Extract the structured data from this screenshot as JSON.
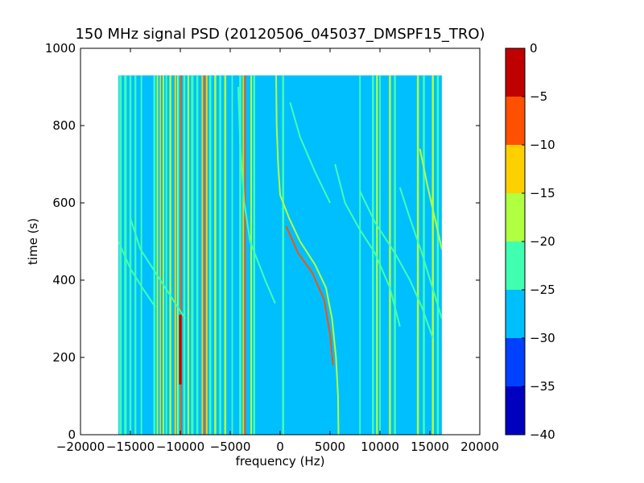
{
  "chart_data": {
    "type": "heatmap",
    "title": "150 MHz signal PSD (20120506_045037_DMSPF15_TRO)",
    "xlabel": "frequency (Hz)",
    "ylabel": "time (s)",
    "xlim": [
      -20000,
      20000
    ],
    "ylim": [
      0,
      1000
    ],
    "xticks": [
      -20000,
      -15000,
      -10000,
      -5000,
      0,
      5000,
      10000,
      15000,
      20000
    ],
    "xtick_labels": [
      "−20000",
      "−15000",
      "−10000",
      "−5000",
      "0",
      "5000",
      "10000",
      "15000",
      "20000"
    ],
    "yticks": [
      0,
      200,
      400,
      600,
      800,
      1000
    ],
    "ytick_labels": [
      "0",
      "200",
      "400",
      "600",
      "800",
      "1000"
    ],
    "data_extent": {
      "x": [
        -16200,
        16200
      ],
      "y": [
        0,
        930
      ]
    },
    "background_level_color": "#00bfff",
    "colorbar": {
      "range": [
        -40,
        0
      ],
      "levels": [
        {
          "from": -40,
          "to": -35,
          "color": "#0000bf"
        },
        {
          "from": -35,
          "to": -30,
          "color": "#0040ff"
        },
        {
          "from": -30,
          "to": -25,
          "color": "#00bfff"
        },
        {
          "from": -25,
          "to": -20,
          "color": "#40ffb0"
        },
        {
          "from": -20,
          "to": -15,
          "color": "#b0ff40"
        },
        {
          "from": -15,
          "to": -10,
          "color": "#ffd000"
        },
        {
          "from": -10,
          "to": -5,
          "color": "#ff5000"
        },
        {
          "from": -5,
          "to": 0,
          "color": "#c00000"
        }
      ],
      "ticks": [
        0,
        -5,
        -10,
        -15,
        -20,
        -25,
        -30,
        -35,
        -40
      ],
      "tick_labels": [
        "0",
        "−5",
        "−10",
        "−15",
        "−20",
        "−25",
        "−30",
        "−35",
        "−40"
      ]
    },
    "constant_lines": [
      {
        "freq": -16000,
        "level": "-25..-20",
        "width_hz": 250
      },
      {
        "freq": -15500,
        "level": "-25..-20",
        "width_hz": 250
      },
      {
        "freq": -15000,
        "level": "-25..-20",
        "width_hz": 200
      },
      {
        "freq": -14500,
        "level": "-25..-20",
        "width_hz": 180
      },
      {
        "freq": -13900,
        "level": "-25..-20",
        "width_hz": 150
      },
      {
        "freq": -12600,
        "level": "-25..-20",
        "width_hz": 200
      },
      {
        "freq": -12300,
        "level": "-20..-15",
        "width_hz": 150
      },
      {
        "freq": -12000,
        "level": "-15..-10",
        "width_hz": 130
      },
      {
        "freq": -11700,
        "level": "-20..-15",
        "width_hz": 150
      },
      {
        "freq": -11400,
        "level": "-25..-20",
        "width_hz": 150
      },
      {
        "freq": -11000,
        "level": "-20..-15",
        "width_hz": 200
      },
      {
        "freq": -10500,
        "level": "-15..-10",
        "width_hz": 150
      },
      {
        "freq": -10250,
        "level": "-20..-15",
        "width_hz": 150
      },
      {
        "freq": -9900,
        "level": "-10..-5",
        "width_hz": 140
      },
      {
        "freq": -9600,
        "level": "-25..-20",
        "width_hz": 200
      },
      {
        "freq": -9200,
        "level": "-20..-15",
        "width_hz": 180
      },
      {
        "freq": -8800,
        "level": "-25..-20",
        "width_hz": 250
      },
      {
        "freq": -8300,
        "level": "-25..-20",
        "width_hz": 200
      },
      {
        "freq": -7800,
        "level": "-15..-10",
        "width_hz": 150
      },
      {
        "freq": -7600,
        "level": "-10..-5",
        "width_hz": 140
      },
      {
        "freq": -7350,
        "level": "-15..-10",
        "width_hz": 150
      },
      {
        "freq": -7000,
        "level": "-25..-20",
        "width_hz": 200
      },
      {
        "freq": -6500,
        "level": "-20..-15",
        "width_hz": 200
      },
      {
        "freq": -6000,
        "level": "-25..-20",
        "width_hz": 200
      },
      {
        "freq": -5500,
        "level": "-20..-15",
        "width_hz": 200
      },
      {
        "freq": -4800,
        "level": "-25..-20",
        "width_hz": 150
      },
      {
        "freq": -4000,
        "level": "-25..-20",
        "width_hz": 200
      },
      {
        "freq": -3700,
        "level": "-15..-10",
        "width_hz": 130
      },
      {
        "freq": -3500,
        "level": "-10..-5",
        "width_hz": 130
      },
      {
        "freq": -2900,
        "level": "-20..-15",
        "width_hz": 160
      },
      {
        "freq": -2600,
        "level": "-25..-20",
        "width_hz": 200
      },
      {
        "freq": 300,
        "level": "-25..-20",
        "width_hz": 200
      },
      {
        "freq": 8000,
        "level": "-25..-20",
        "width_hz": 150
      },
      {
        "freq": 9300,
        "level": "-25..-20",
        "width_hz": 200
      },
      {
        "freq": 9700,
        "level": "-20..-15",
        "width_hz": 180
      },
      {
        "freq": 10000,
        "level": "-25..-20",
        "width_hz": 150
      },
      {
        "freq": 11000,
        "level": "-20..-15",
        "width_hz": 200
      },
      {
        "freq": 11500,
        "level": "-25..-20",
        "width_hz": 200
      },
      {
        "freq": 13800,
        "level": "-20..-15",
        "width_hz": 200
      },
      {
        "freq": 14400,
        "level": "-25..-20",
        "width_hz": 200
      },
      {
        "freq": 15300,
        "level": "-20..-15",
        "width_hz": 200
      },
      {
        "freq": 15800,
        "level": "-25..-20",
        "width_hz": 200
      }
    ],
    "peak_segments": [
      {
        "freq": -10000,
        "t_from": 130,
        "t_to": 310,
        "level": "-5..0",
        "width_hz": 250
      }
    ],
    "doppler_curves": [
      {
        "level": "-20..-15",
        "points": [
          [
            -400,
            930
          ],
          [
            -350,
            800
          ],
          [
            -200,
            700
          ],
          [
            0,
            620
          ],
          [
            900,
            560
          ],
          [
            2000,
            500
          ],
          [
            3500,
            440
          ],
          [
            4600,
            380
          ],
          [
            5200,
            300
          ],
          [
            5600,
            200
          ],
          [
            5800,
            100
          ],
          [
            5850,
            0
          ]
        ]
      },
      {
        "level": "-10..-5",
        "points": [
          [
            600,
            540
          ],
          [
            1800,
            470
          ],
          [
            3200,
            420
          ],
          [
            4400,
            350
          ],
          [
            5000,
            260
          ],
          [
            5300,
            180
          ]
        ]
      },
      {
        "level": "-25..-20",
        "points": [
          [
            -15000,
            560
          ],
          [
            -14000,
            480
          ],
          [
            -12500,
            420
          ],
          [
            -11000,
            360
          ],
          [
            -9500,
            300
          ]
        ]
      },
      {
        "level": "-25..-20",
        "points": [
          [
            -16200,
            500
          ],
          [
            -15000,
            430
          ],
          [
            -13800,
            380
          ],
          [
            -12500,
            330
          ]
        ]
      },
      {
        "level": "-25..-20",
        "points": [
          [
            -4200,
            900
          ],
          [
            -4000,
            750
          ],
          [
            -3600,
            600
          ],
          [
            -3000,
            500
          ],
          [
            -1500,
            400
          ],
          [
            -500,
            340
          ]
        ]
      },
      {
        "level": "-25..-20",
        "points": [
          [
            5500,
            700
          ],
          [
            6500,
            600
          ],
          [
            8000,
            530
          ],
          [
            9500,
            470
          ],
          [
            11000,
            380
          ],
          [
            12000,
            280
          ]
        ]
      },
      {
        "level": "-25..-20",
        "points": [
          [
            1000,
            860
          ],
          [
            2000,
            770
          ],
          [
            3500,
            680
          ],
          [
            5000,
            600
          ]
        ]
      },
      {
        "level": "-25..-20",
        "points": [
          [
            8000,
            630
          ],
          [
            9500,
            550
          ],
          [
            11500,
            470
          ],
          [
            13000,
            400
          ],
          [
            14200,
            330
          ],
          [
            15300,
            250
          ]
        ]
      },
      {
        "level": "-20..-15",
        "points": [
          [
            14000,
            740
          ],
          [
            14800,
            640
          ],
          [
            15500,
            560
          ],
          [
            16200,
            480
          ]
        ]
      },
      {
        "level": "-25..-20",
        "points": [
          [
            12000,
            640
          ],
          [
            13000,
            560
          ],
          [
            14200,
            470
          ],
          [
            15500,
            360
          ],
          [
            16200,
            300
          ]
        ]
      }
    ]
  }
}
